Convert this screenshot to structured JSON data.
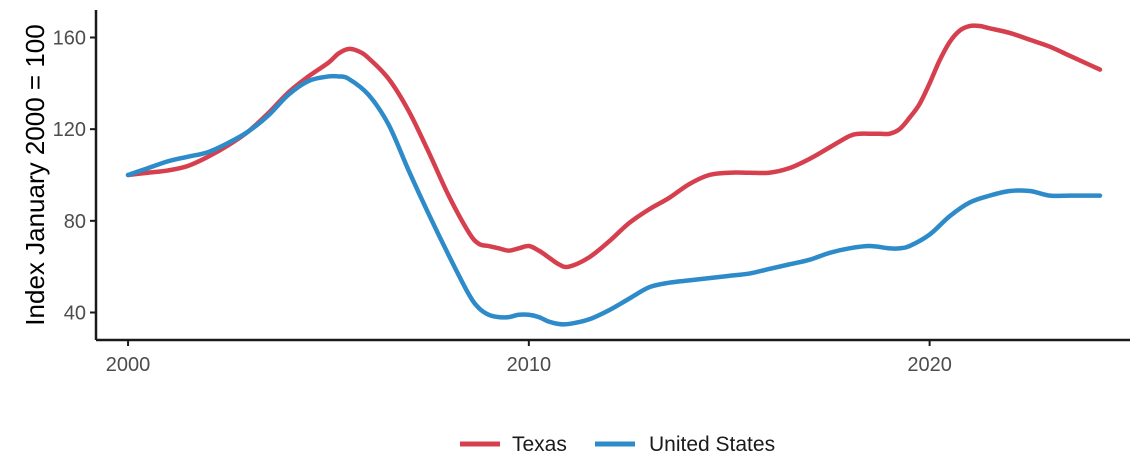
{
  "chart_data": {
    "type": "line",
    "title": "",
    "xlabel": "",
    "ylabel": "Index January 2000 = 100",
    "xlim": [
      1999.2,
      2025.0
    ],
    "ylim": [
      28,
      172
    ],
    "x_ticks": [
      2000,
      2010,
      2020
    ],
    "y_ticks": [
      40,
      80,
      120,
      160
    ],
    "grid": false,
    "legend_position": "bottom",
    "series": [
      {
        "name": "Texas",
        "color": "#d6404e",
        "x": [
          2000.0,
          2000.5,
          2001.0,
          2001.5,
          2002.0,
          2002.5,
          2003.0,
          2003.5,
          2004.0,
          2004.5,
          2005.0,
          2005.25,
          2005.5,
          2005.75,
          2006.0,
          2006.5,
          2007.0,
          2007.5,
          2008.0,
          2008.5,
          2008.75,
          2009.0,
          2009.25,
          2009.5,
          2009.75,
          2010.0,
          2010.25,
          2010.5,
          2010.75,
          2011.0,
          2011.5,
          2012.0,
          2012.5,
          2013.0,
          2013.5,
          2014.0,
          2014.5,
          2015.0,
          2015.5,
          2016.0,
          2016.5,
          2017.0,
          2017.5,
          2018.0,
          2018.25,
          2018.5,
          2018.75,
          2019.0,
          2019.25,
          2019.5,
          2019.75,
          2020.0,
          2020.25,
          2020.5,
          2020.75,
          2021.0,
          2021.25,
          2021.5,
          2022.0,
          2022.5,
          2023.0,
          2023.5,
          2024.0,
          2024.25
        ],
        "y": [
          100,
          101,
          102,
          104,
          108,
          113,
          119,
          127,
          136,
          143,
          149,
          153,
          155,
          154,
          151,
          142,
          128,
          110,
          91,
          75,
          70,
          69,
          68,
          67,
          68,
          69,
          67,
          64,
          61,
          60,
          64,
          71,
          79,
          85,
          90,
          96,
          100,
          101,
          101,
          101,
          103,
          107,
          112,
          117,
          118,
          118,
          118,
          118,
          120,
          125,
          131,
          140,
          150,
          158,
          163,
          165,
          165,
          164,
          162,
          159,
          156,
          152,
          148,
          146
        ]
      },
      {
        "name": "United States",
        "color": "#2e8bc9",
        "x": [
          2000.0,
          2000.5,
          2001.0,
          2001.5,
          2002.0,
          2002.5,
          2003.0,
          2003.5,
          2004.0,
          2004.5,
          2005.0,
          2005.25,
          2005.5,
          2006.0,
          2006.5,
          2007.0,
          2007.5,
          2008.0,
          2008.5,
          2008.75,
          2009.0,
          2009.25,
          2009.5,
          2009.75,
          2010.0,
          2010.25,
          2010.5,
          2010.75,
          2011.0,
          2011.5,
          2012.0,
          2012.5,
          2013.0,
          2013.5,
          2014.0,
          2014.5,
          2015.0,
          2015.5,
          2016.0,
          2016.5,
          2017.0,
          2017.5,
          2018.0,
          2018.5,
          2019.0,
          2019.25,
          2019.5,
          2020.0,
          2020.5,
          2021.0,
          2021.5,
          2022.0,
          2022.5,
          2023.0,
          2023.5,
          2024.0,
          2024.25
        ],
        "y": [
          100,
          103,
          106,
          108,
          110,
          114,
          119,
          126,
          135,
          141,
          143,
          143,
          142,
          135,
          122,
          102,
          83,
          65,
          48,
          42,
          39,
          38,
          38,
          39,
          39,
          38,
          36,
          35,
          35,
          37,
          41,
          46,
          51,
          53,
          54,
          55,
          56,
          57,
          59,
          61,
          63,
          66,
          68,
          69,
          68,
          68,
          69,
          74,
          82,
          88,
          91,
          93,
          93,
          91,
          91,
          91,
          91
        ]
      }
    ]
  }
}
